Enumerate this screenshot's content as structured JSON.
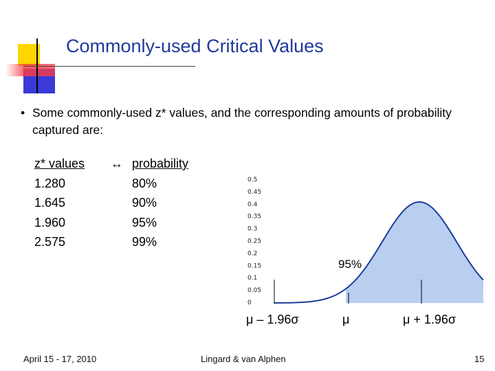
{
  "slide": {
    "title": "Commonly-used Critical Values",
    "bullet_symbol": "•",
    "bullet": "Some commonly-used z* values, and the corresponding amounts of probability captured are:"
  },
  "table": {
    "z_header": "z* values",
    "arrow": "↔",
    "p_header": "probability",
    "rows": [
      {
        "z": "1.280",
        "p": "80%"
      },
      {
        "z": "1.645",
        "p": "90%"
      },
      {
        "z": "1.960",
        "p": "95%"
      },
      {
        "z": "2.575",
        "p": "99%"
      }
    ]
  },
  "chart_data": {
    "type": "area",
    "y_ticks": [
      "0.5",
      "0.45",
      "0.4",
      "0.35",
      "0.3",
      "0.25",
      "0.2",
      "0.15",
      "0.1",
      "0.05",
      "0"
    ],
    "ylim": [
      0,
      0.5
    ],
    "annotation": "95%",
    "x_labels": [
      "μ – 1.96σ",
      "μ",
      "μ + 1.96σ"
    ],
    "shaded_fraction": 0.95,
    "colors": {
      "fill": "#b8cff0",
      "curve": "#1d3b9a"
    }
  },
  "footer": {
    "date": "April 15 - 17, 2010",
    "author": "Lingard & van Alphen",
    "page": "15"
  }
}
